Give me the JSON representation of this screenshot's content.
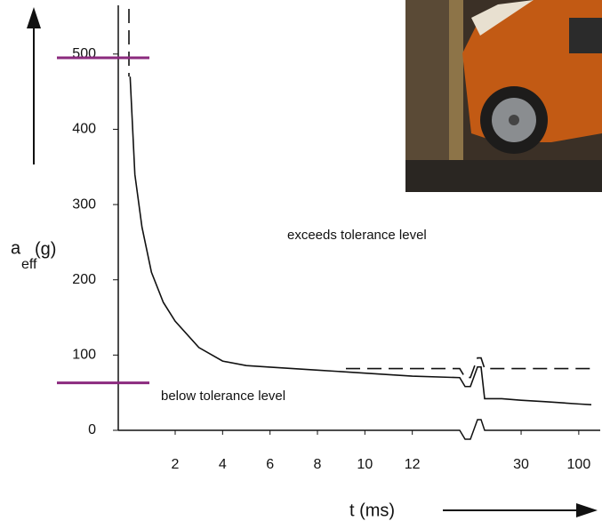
{
  "chart_data": {
    "type": "line",
    "y_label": [
      "a",
      "eff",
      "(g)"
    ],
    "x_label": "t (ms)",
    "annotations": [
      "exceeds tolerance level",
      "below tolerance level"
    ],
    "xlim": [
      -0.4,
      130
    ],
    "ylim": [
      0,
      560
    ],
    "x_break": 14,
    "x_scale_after_break": "log",
    "xticks": [
      2,
      4,
      6,
      8,
      10,
      12,
      30,
      100
    ],
    "yticks": [
      0,
      100,
      200,
      300,
      400,
      500
    ],
    "series": [
      {
        "color": "#111111",
        "dash": false,
        "x": [
          0.1,
          0.3,
          0.6,
          1,
          1.5,
          2,
          3,
          4,
          5,
          6,
          8,
          10,
          12,
          14,
          20,
          30,
          50,
          100,
          130
        ],
        "values": [
          470,
          340,
          270,
          210,
          170,
          145,
          110,
          92,
          86,
          84,
          80,
          76,
          72,
          70,
          42,
          40,
          38,
          35,
          34
        ]
      },
      {
        "color": "#111111",
        "dash": true,
        "x": [
          9.2,
          130
        ],
        "values": [
          82,
          82
        ]
      },
      {
        "color": "#111111",
        "dash": true,
        "x": [
          0.05,
          0.05
        ],
        "values": [
          560,
          470
        ]
      }
    ],
    "hlines": [
      {
        "value": 495,
        "color": "#8b2a7e"
      },
      {
        "value": 63,
        "color": "#8b2a7e"
      }
    ]
  }
}
